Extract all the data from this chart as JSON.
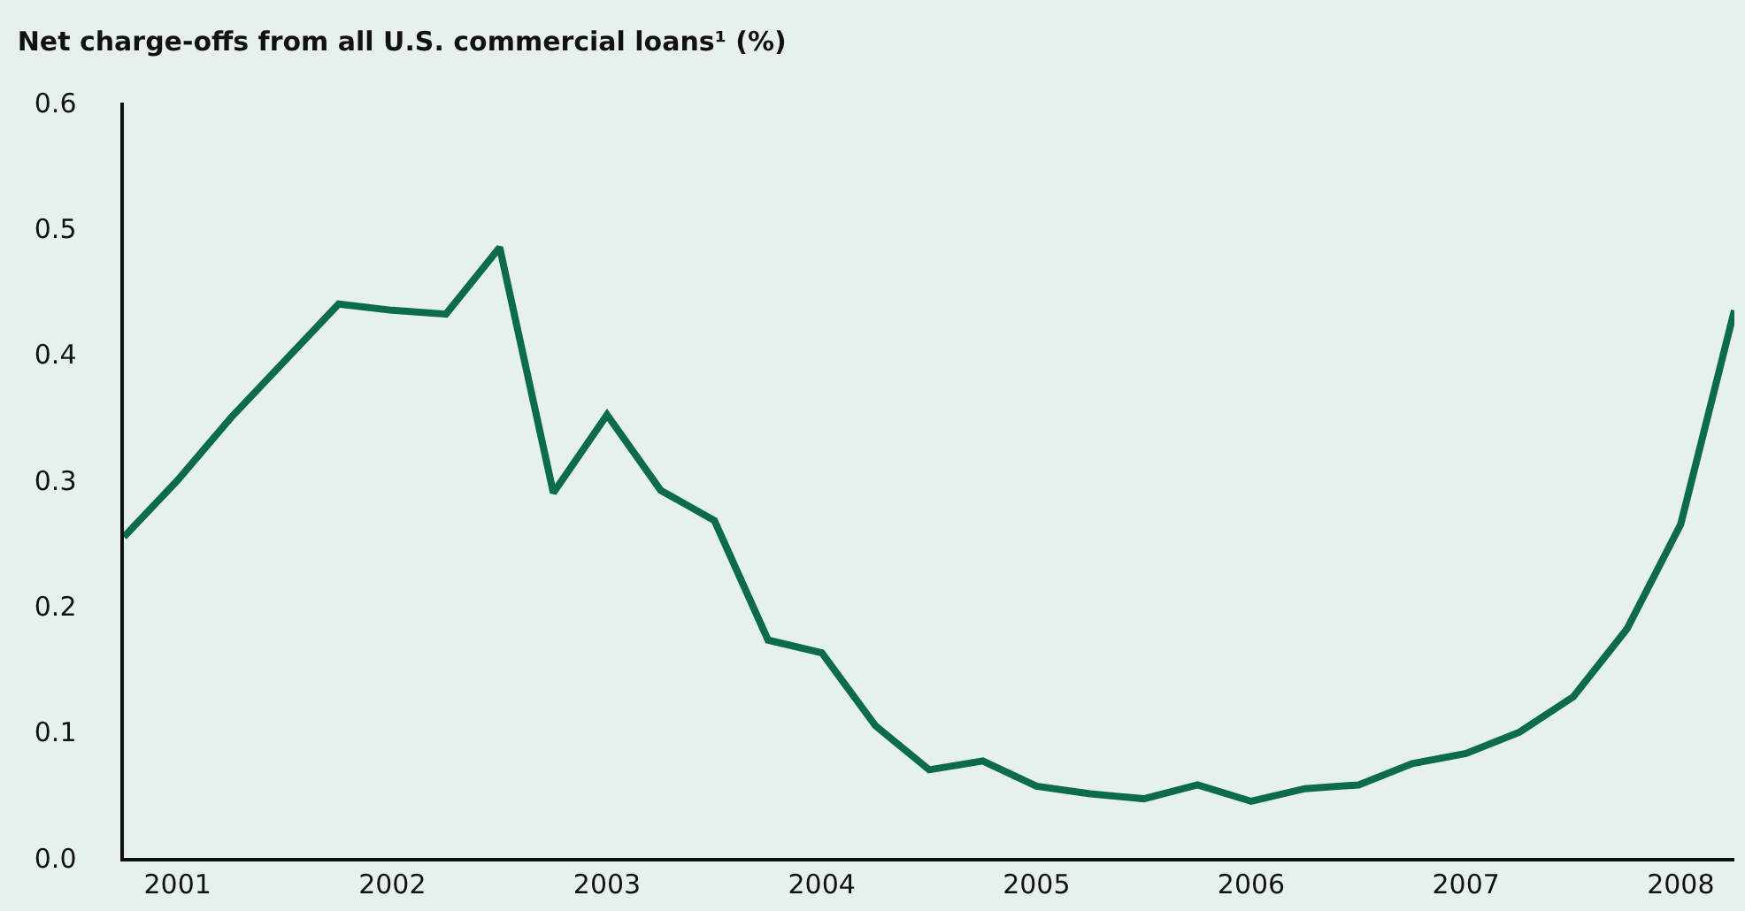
{
  "chart_data": {
    "type": "line",
    "title": "Net charge-offs from all U.S. commercial loans¹ (%)",
    "x": [
      2000.75,
      2001,
      2001.25,
      2001.5,
      2001.75,
      2002,
      2002.25,
      2002.5,
      2002.75,
      2003,
      2003.25,
      2003.5,
      2003.75,
      2004,
      2004.25,
      2004.5,
      2004.75,
      2005,
      2005.25,
      2005.5,
      2005.75,
      2006,
      2006.25,
      2006.5,
      2006.75,
      2007,
      2007.25,
      2007.5,
      2007.75,
      2008,
      2008.25
    ],
    "series": [
      {
        "color": "#0b6b4a",
        "values": [
          0.255,
          0.3,
          0.35,
          0.395,
          0.44,
          0.435,
          0.432,
          0.485,
          0.29,
          0.352,
          0.292,
          0.268,
          0.173,
          0.163,
          0.105,
          0.07,
          0.077,
          0.057,
          0.051,
          0.047,
          0.058,
          0.045,
          0.055,
          0.058,
          0.075,
          0.083,
          0.1,
          0.128,
          0.182,
          0.265,
          0.435
        ]
      }
    ],
    "xlim": [
      2000.75,
      2008.25
    ],
    "xticks": [
      2001,
      2002,
      2003,
      2004,
      2005,
      2006,
      2007,
      2008
    ],
    "ylim": [
      0,
      0.6
    ],
    "yticks": [
      {
        "value": 0,
        "label": "0.0"
      },
      0.1,
      0.2,
      0.3,
      0.4,
      0.5,
      0.6
    ],
    "grid": false,
    "marker": "none",
    "line_style": "solid"
  }
}
